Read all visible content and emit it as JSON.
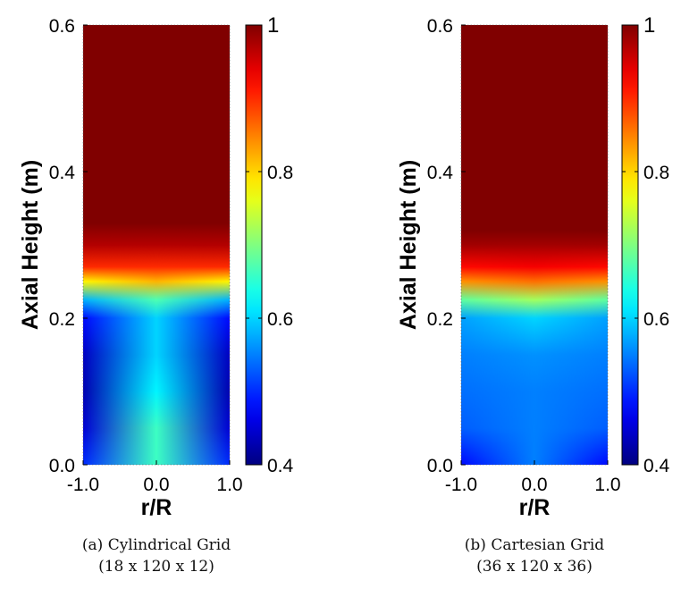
{
  "chart_data": [
    {
      "type": "heatmap",
      "caption_line1": "(a) Cylindrical Grid",
      "caption_line2": "(18 x 120 x 12)",
      "xlabel": "r/R",
      "ylabel": "Axial Height (m)",
      "xlim": [
        -1.0,
        1.0
      ],
      "ylim": [
        0.0,
        0.6
      ],
      "xticks": [
        "-1.0",
        "0.0",
        "1.0"
      ],
      "yticks": [
        "0.0",
        "0.2",
        "0.4",
        "0.6"
      ],
      "colorbar": {
        "min": 0.4,
        "max": 1,
        "ticks": [
          "0.4",
          "0.6",
          "0.8",
          "1"
        ],
        "colormap": "jet"
      },
      "profile_center": [
        [
          0.0,
          0.66
        ],
        [
          0.05,
          0.66
        ],
        [
          0.1,
          0.62
        ],
        [
          0.15,
          0.6
        ],
        [
          0.2,
          0.6
        ],
        [
          0.225,
          0.67
        ],
        [
          0.25,
          0.82
        ],
        [
          0.27,
          0.9
        ],
        [
          0.3,
          0.97
        ],
        [
          0.33,
          1.0
        ],
        [
          0.6,
          1.0
        ]
      ],
      "profile_wall": [
        [
          0.0,
          0.5
        ],
        [
          0.05,
          0.45
        ],
        [
          0.1,
          0.43
        ],
        [
          0.15,
          0.44
        ],
        [
          0.2,
          0.48
        ],
        [
          0.225,
          0.58
        ],
        [
          0.25,
          0.78
        ],
        [
          0.27,
          0.9
        ],
        [
          0.3,
          0.97
        ],
        [
          0.33,
          1.0
        ],
        [
          0.6,
          1.0
        ]
      ]
    },
    {
      "type": "heatmap",
      "caption_line1": "(b) Cartesian Grid",
      "caption_line2": "(36 x 120 x 36)",
      "xlabel": "r/R",
      "ylabel": "Axial Height (m)",
      "xlim": [
        -1.0,
        1.0
      ],
      "ylim": [
        0.0,
        0.6
      ],
      "xticks": [
        "-1.0",
        "0.0",
        "1.0"
      ],
      "yticks": [
        "0.0",
        "0.2",
        "0.4",
        "0.6"
      ],
      "colorbar": {
        "min": 0.4,
        "max": 1,
        "ticks": [
          "0.4",
          "0.6",
          "0.8",
          "1"
        ],
        "colormap": "jet"
      },
      "profile_center": [
        [
          0.0,
          0.55
        ],
        [
          0.05,
          0.55
        ],
        [
          0.1,
          0.55
        ],
        [
          0.15,
          0.56
        ],
        [
          0.2,
          0.6
        ],
        [
          0.225,
          0.72
        ],
        [
          0.25,
          0.86
        ],
        [
          0.27,
          0.93
        ],
        [
          0.3,
          0.98
        ],
        [
          0.32,
          1.0
        ],
        [
          0.6,
          1.0
        ]
      ],
      "profile_wall": [
        [
          0.0,
          0.48
        ],
        [
          0.05,
          0.53
        ],
        [
          0.1,
          0.54
        ],
        [
          0.15,
          0.55
        ],
        [
          0.2,
          0.57
        ],
        [
          0.225,
          0.68
        ],
        [
          0.25,
          0.84
        ],
        [
          0.27,
          0.92
        ],
        [
          0.3,
          0.98
        ],
        [
          0.32,
          1.0
        ],
        [
          0.6,
          1.0
        ]
      ]
    }
  ]
}
